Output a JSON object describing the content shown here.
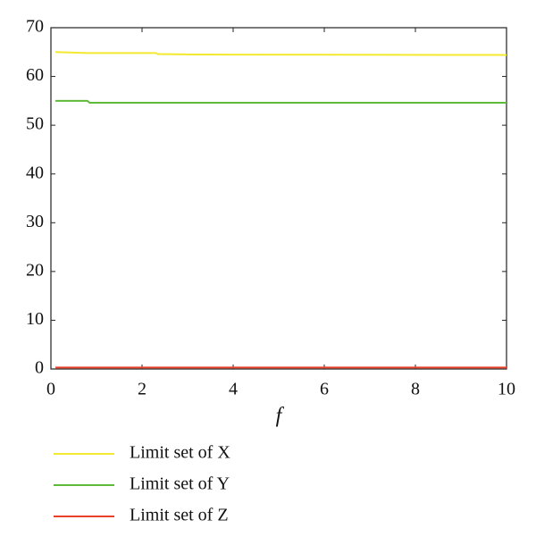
{
  "chart_data": {
    "type": "line",
    "xlabel": "f",
    "x": [
      0.1,
      0.8,
      0.85,
      2.3,
      2.35,
      3.2,
      10
    ],
    "series": [
      {
        "name": "Limit set of X",
        "color": "#f2ea2e",
        "values": [
          65,
          64.8,
          64.8,
          64.8,
          64.6,
          64.5,
          64.4
        ]
      },
      {
        "name": "Limit set of Y",
        "color": "#5fba3a",
        "values": [
          55,
          55,
          54.6,
          54.6,
          54.6,
          54.6,
          54.6
        ]
      },
      {
        "name": "Limit set of Z",
        "color": "#e8402a",
        "values": [
          0.3,
          0.3,
          0.3,
          0.3,
          0.3,
          0.3,
          0.3
        ]
      }
    ],
    "xlim": [
      0,
      10
    ],
    "xticks": [
      0,
      2,
      4,
      6,
      8,
      10
    ],
    "ylim": [
      0,
      70
    ],
    "yticks": [
      0,
      10,
      20,
      30,
      40,
      50,
      60,
      70
    ],
    "legend": "bottom"
  }
}
